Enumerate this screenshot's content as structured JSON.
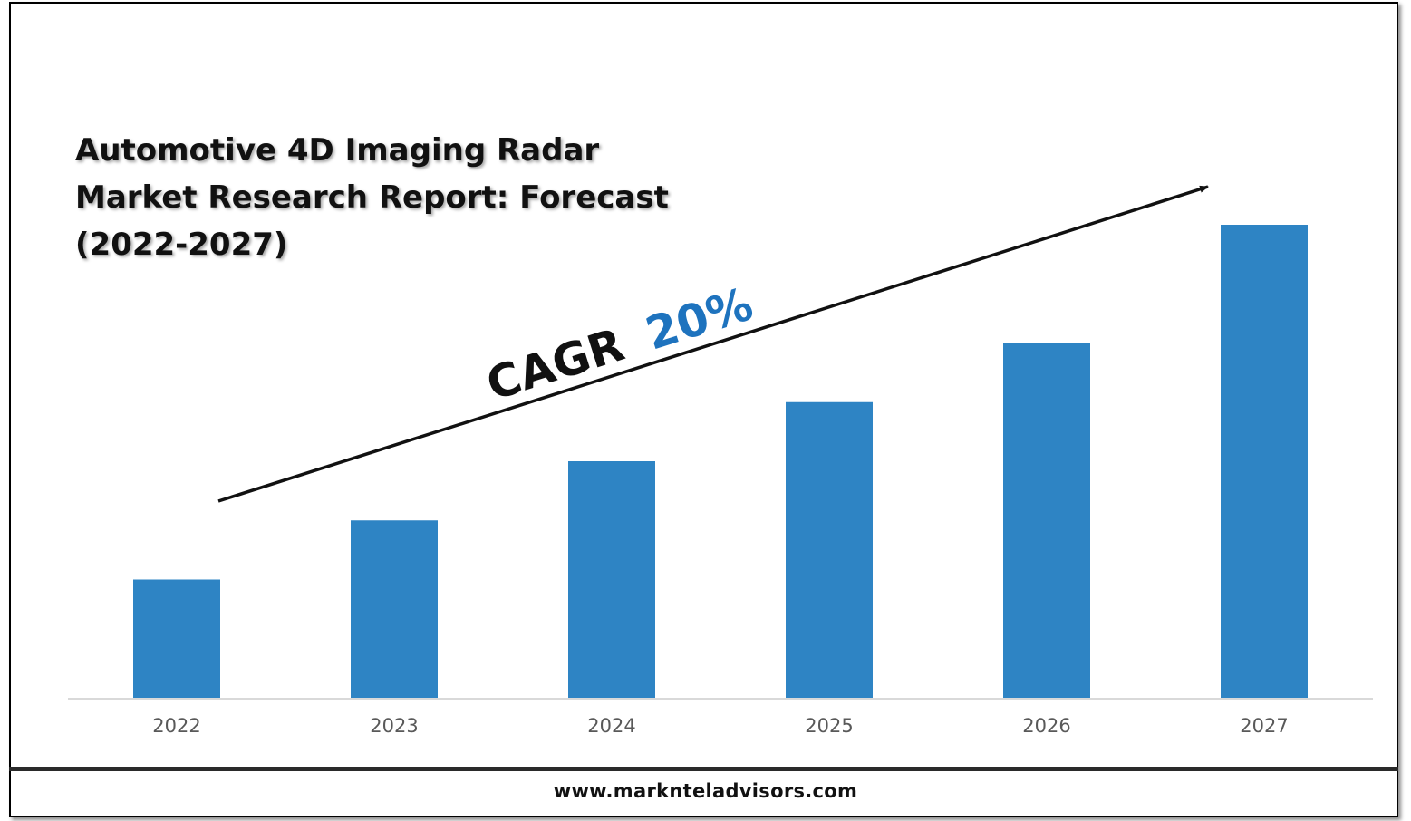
{
  "title_lines": [
    "Automotive 4D Imaging Radar",
    "Market Research Report: Forecast",
    "(2022-2027)"
  ],
  "annotation": {
    "label": "CAGR",
    "value": "20%"
  },
  "footer": {
    "url": "www.marknteladvisors.com"
  },
  "colors": {
    "bar": "#2E84C4",
    "cagr_value": "#1E73BE",
    "axis": "#d9d9d9",
    "text": "#111111",
    "tick": "#595959"
  },
  "chart_data": {
    "type": "bar",
    "title": "Automotive 4D Imaging Radar Market Research Report: Forecast (2022-2027)",
    "categories": [
      "2022",
      "2023",
      "2024",
      "2025",
      "2026",
      "2027"
    ],
    "values": [
      1.0,
      1.5,
      2.0,
      2.5,
      3.0,
      4.0
    ],
    "ylim": [
      0,
      4.2
    ],
    "xlabel": "",
    "ylabel": "",
    "grid": false,
    "legend": "none"
  }
}
